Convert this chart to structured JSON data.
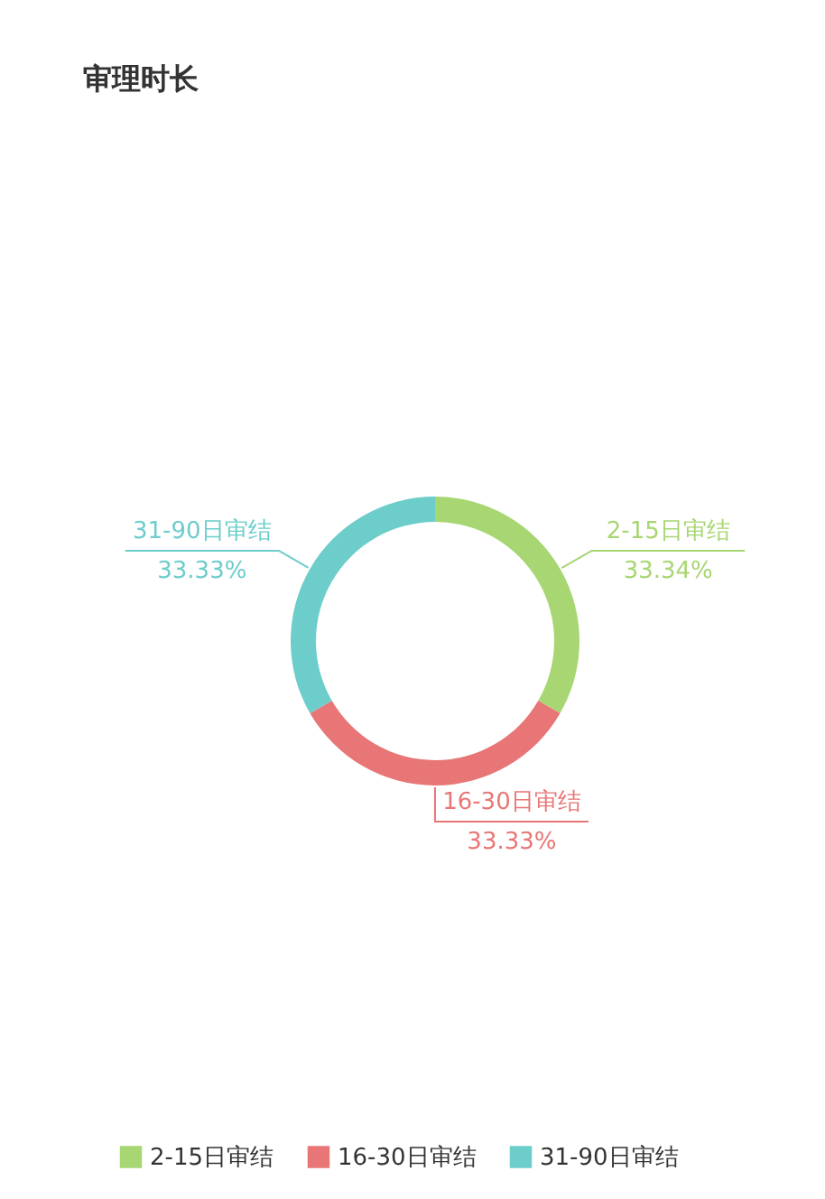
{
  "chart_data": {
    "type": "donut",
    "title": "审理时长",
    "categories": [
      "2-15日审结",
      "16-30日审结",
      "31-90日审结"
    ],
    "values": [
      33.34,
      33.33,
      33.33
    ],
    "colors": [
      "#a8d672",
      "#e87676",
      "#6ccdcb"
    ],
    "value_labels": [
      "33.34%",
      "33.33%",
      "33.33%"
    ],
    "legend": "bottom"
  }
}
